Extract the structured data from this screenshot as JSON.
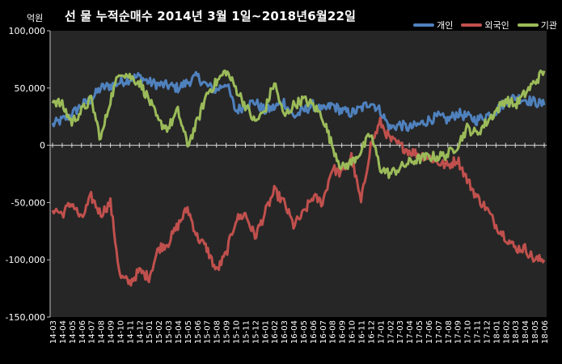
{
  "chart_data": {
    "type": "line",
    "title": "선 물 누적순매수 2014년 3월 1일~2018년6월22일",
    "unit_label": "억원",
    "ylim": [
      -150000,
      100000
    ],
    "y_ticks": [
      100000,
      50000,
      0,
      -50000,
      -100000,
      -150000
    ],
    "y_tick_labels": [
      "100,000",
      "50,000",
      "0",
      "-50,000",
      "-100,000",
      "-150,000"
    ],
    "categories": [
      "14-03",
      "14-04",
      "14-05",
      "14-06",
      "14-07",
      "14-08",
      "14-09",
      "14-10",
      "14-11",
      "14-12",
      "15-01",
      "15-02",
      "15-03",
      "15-04",
      "15-05",
      "15-06",
      "15-07",
      "15-08",
      "15-09",
      "15-10",
      "15-11",
      "15-12",
      "16-01",
      "16-02",
      "16-03",
      "16-04",
      "16-05",
      "16-06",
      "16-07",
      "16-08",
      "16-09",
      "16-10",
      "16-11",
      "16-12",
      "17-01",
      "17-02",
      "17-03",
      "17-04",
      "17-05",
      "17-06",
      "17-07",
      "17-08",
      "17-09",
      "17-10",
      "17-11",
      "17-12",
      "18-01",
      "18-02",
      "18-03",
      "18-04",
      "18-05",
      "18-06"
    ],
    "legend_position": "top-right",
    "grid": false,
    "series": [
      {
        "name": "개인",
        "color": "#4f81bd",
        "values": [
          18000,
          22000,
          27000,
          35000,
          40000,
          50000,
          52000,
          55000,
          58000,
          60000,
          55000,
          53000,
          52000,
          50000,
          55000,
          60000,
          52000,
          48000,
          55000,
          30000,
          35000,
          38000,
          30000,
          33000,
          38000,
          25000,
          30000,
          35000,
          30000,
          35000,
          30000,
          28000,
          32000,
          38000,
          30000,
          15000,
          18000,
          15000,
          18000,
          22000,
          25000,
          22000,
          28000,
          25000,
          22000,
          26000,
          30000,
          38000,
          42000,
          40000,
          38000,
          35000
        ]
      },
      {
        "name": "외국인",
        "color": "#c0504d",
        "values": [
          -55000,
          -60000,
          -50000,
          -65000,
          -45000,
          -60000,
          -50000,
          -115000,
          -120000,
          -110000,
          -115000,
          -90000,
          -85000,
          -70000,
          -55000,
          -80000,
          -90000,
          -110000,
          -95000,
          -65000,
          -60000,
          -80000,
          -60000,
          -40000,
          -50000,
          -70000,
          -60000,
          -45000,
          -50000,
          -20000,
          -25000,
          -10000,
          -50000,
          0,
          20000,
          5000,
          0,
          -5000,
          -8000,
          -10000,
          -15000,
          -18000,
          -12000,
          -30000,
          -45000,
          -55000,
          -70000,
          -80000,
          -90000,
          -90000,
          -100000,
          -100000
        ]
      },
      {
        "name": "기관",
        "color": "#9bbb59",
        "values": [
          40000,
          35000,
          20000,
          30000,
          40000,
          5000,
          40000,
          65000,
          60000,
          55000,
          40000,
          20000,
          15000,
          30000,
          0,
          20000,
          45000,
          55000,
          65000,
          50000,
          35000,
          20000,
          30000,
          55000,
          25000,
          35000,
          40000,
          35000,
          25000,
          0,
          -20000,
          -15000,
          -5000,
          10000,
          -20000,
          -25000,
          -20000,
          -15000,
          -12000,
          -10000,
          -10000,
          -8000,
          0,
          15000,
          10000,
          20000,
          30000,
          40000,
          35000,
          45000,
          55000,
          65000
        ]
      }
    ]
  }
}
